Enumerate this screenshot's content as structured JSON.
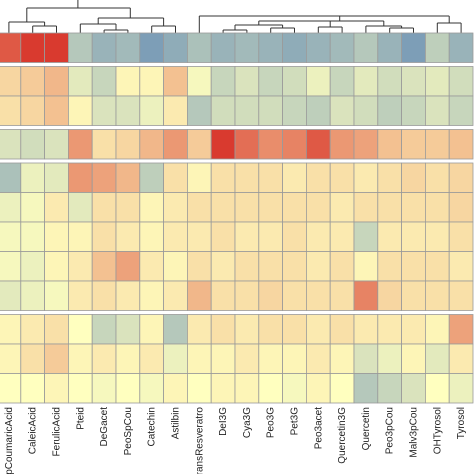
{
  "chart_data": {
    "type": "heatmap",
    "title": "",
    "xlabel": "",
    "ylabel": "",
    "legend": "none",
    "grid": true,
    "columns": [
      "pCoumaricAcid",
      "CaleicAcid",
      "FerulicAcid",
      "Pteid",
      "DeGacet",
      "PeoSpCou",
      "Catechin",
      "Astilbin",
      "transResveratro",
      "DeI3G",
      "Cya3G",
      "Peo3G",
      "Pet3G",
      "Peo3acet",
      "Quercetin3G",
      "Quercetin",
      "Peo3pCou",
      "Malv3pCou",
      "OHTyrosol",
      "Tyrosol"
    ],
    "row_groups": [
      1,
      2,
      1,
      5,
      3
    ],
    "color_scale": {
      "low": "#4575b4",
      "mid": "#ffffbf",
      "high": "#d73027",
      "domain": [
        -1,
        1
      ]
    },
    "dendrogram": {
      "top": true,
      "left": false
    },
    "values": [
      [
        0.8,
        0.95,
        0.95,
        -0.4,
        -0.55,
        -0.5,
        -0.7,
        -0.6,
        -0.45,
        -0.55,
        -0.5,
        -0.55,
        -0.6,
        -0.55,
        -0.5,
        -0.4,
        -0.55,
        -0.7,
        -0.35,
        -0.55
      ],
      [
        0.2,
        0.25,
        0.35,
        -0.15,
        -0.3,
        0.05,
        0.05,
        0.3,
        -0.05,
        -0.3,
        -0.2,
        -0.3,
        -0.25,
        -0.1,
        -0.3,
        -0.15,
        -0.25,
        -0.2,
        -0.15,
        -0.25
      ],
      [
        0.15,
        0.2,
        0.3,
        0.05,
        -0.2,
        -0.2,
        -0.1,
        0.1,
        -0.4,
        -0.25,
        -0.25,
        -0.25,
        -0.3,
        -0.35,
        -0.2,
        -0.25,
        -0.35,
        -0.3,
        -0.2,
        -0.3
      ],
      [
        -0.2,
        -0.25,
        -0.2,
        0.5,
        0.15,
        0.2,
        0.35,
        0.5,
        0.25,
        0.95,
        0.7,
        0.55,
        0.6,
        0.8,
        0.5,
        0.45,
        0.3,
        0.25,
        0.25,
        0.3
      ],
      [
        -0.45,
        -0.1,
        -0.15,
        0.5,
        0.45,
        0.35,
        -0.35,
        0.15,
        0.05,
        0.15,
        0.15,
        0.15,
        0.1,
        0.15,
        0.15,
        0.1,
        0.15,
        0.2,
        0.15,
        0.2
      ],
      [
        -0.1,
        -0.05,
        0.1,
        -0.15,
        0.15,
        0.15,
        0.05,
        0.1,
        0.15,
        0.15,
        0.15,
        0.15,
        0.15,
        0.15,
        0.1,
        0.15,
        0.15,
        0.15,
        0.15,
        0.2
      ],
      [
        -0.05,
        -0.05,
        0.05,
        0.05,
        0.15,
        0.1,
        0.05,
        0.1,
        0.1,
        0.15,
        0.1,
        0.1,
        0.15,
        0.1,
        0.1,
        -0.3,
        0.1,
        0.1,
        0.1,
        0.15
      ],
      [
        -0.05,
        -0.1,
        0.05,
        0.1,
        0.3,
        0.45,
        0.1,
        0.05,
        0.15,
        0.1,
        0.15,
        0.15,
        0.15,
        0.1,
        0.15,
        0.05,
        0.15,
        0.15,
        0.15,
        0.1
      ],
      [
        -0.15,
        -0.1,
        -0.05,
        0.1,
        0.15,
        0.1,
        0.05,
        0.1,
        0.35,
        0.15,
        0.15,
        0.2,
        0.15,
        0.15,
        0.15,
        0.6,
        0.2,
        0.15,
        0.15,
        0.15
      ],
      [
        0.05,
        0.1,
        0.15,
        0.0,
        -0.3,
        -0.2,
        0.05,
        -0.4,
        0.1,
        0.15,
        0.1,
        0.15,
        0.15,
        0.1,
        0.15,
        0.1,
        0.1,
        0.1,
        0.05,
        0.45
      ],
      [
        0.05,
        0.15,
        0.25,
        0.05,
        0.1,
        0.05,
        0.1,
        -0.1,
        0.05,
        0.05,
        0.1,
        0.05,
        0.05,
        0.1,
        0.05,
        -0.2,
        -0.1,
        0.05,
        -0.15,
        0.1
      ],
      [
        0.0,
        0.0,
        0.05,
        0.0,
        -0.05,
        0.0,
        -0.05,
        0.05,
        0.0,
        0.05,
        0.05,
        0.0,
        -0.05,
        0.05,
        0.0,
        -0.4,
        -0.3,
        -0.2,
        0.0,
        -0.1
      ]
    ]
  }
}
